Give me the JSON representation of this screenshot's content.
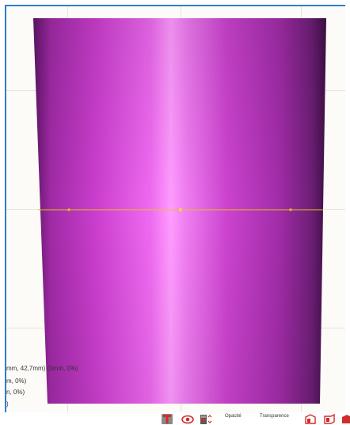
{
  "viewport": {
    "readouts": [
      "mm, 42,7mm) (0mm, 0%)",
      "m, 0%)",
      "n, 0%)",
      ")"
    ]
  },
  "toolbar": {
    "opacity_label": "Opacité",
    "transparency_label": "Transparence"
  },
  "colors": {
    "cylinder_light": "#ff7cff",
    "cylinder_mid": "#c43bc6",
    "cylinder_dark": "#4a1150",
    "section_line": "#e3c21a",
    "viewport_border": "#2d7fd3",
    "icon_red": "#d32b2b"
  }
}
